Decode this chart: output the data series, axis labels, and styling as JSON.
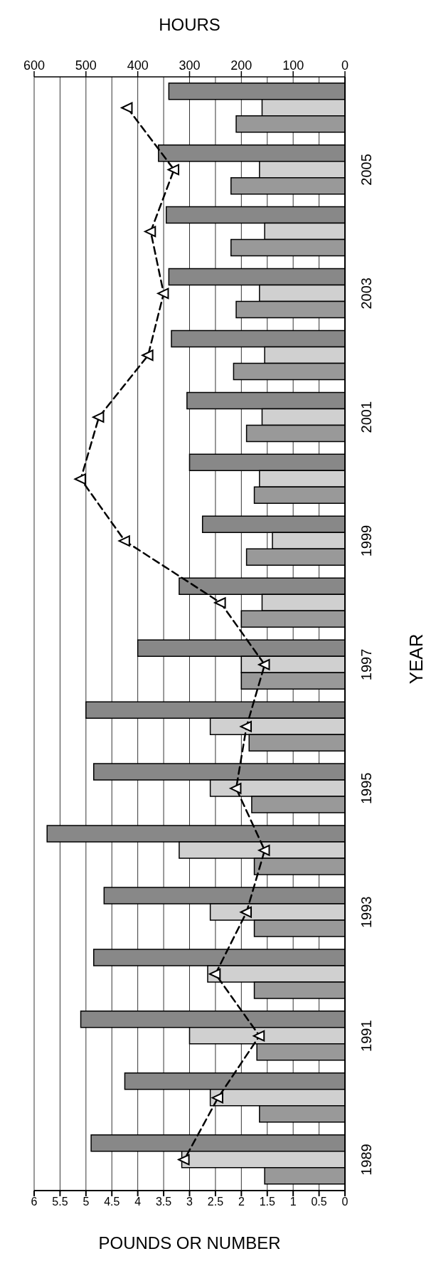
{
  "chart_data": {
    "type": "bar",
    "orientation": "horizontal",
    "categories": [
      null,
      "2005",
      null,
      "2003",
      null,
      "2001",
      null,
      "1999",
      null,
      "1997",
      null,
      "1995",
      null,
      "1993",
      null,
      "1991",
      null,
      "1989"
    ],
    "series": [
      {
        "color": "#888888",
        "values": [
          3.4,
          3.6,
          3.45,
          3.4,
          3.35,
          3.05,
          3.0,
          2.75,
          3.2,
          4.0,
          5.0,
          4.85,
          5.75,
          4.65,
          4.85,
          5.1,
          4.25,
          4.9
        ]
      },
      {
        "color": "#d0d0d0",
        "values": [
          1.6,
          1.65,
          1.55,
          1.65,
          1.55,
          1.6,
          1.65,
          1.4,
          1.6,
          2.0,
          2.6,
          2.6,
          3.2,
          2.6,
          2.65,
          3.0,
          2.6,
          3.15
        ]
      },
      {
        "color": "#999999",
        "values": [
          2.1,
          2.2,
          2.2,
          2.1,
          2.15,
          1.9,
          1.75,
          1.9,
          2.0,
          2.0,
          1.85,
          1.8,
          1.75,
          1.75,
          1.75,
          1.7,
          1.65,
          1.55
        ]
      },
      {
        "type": "line",
        "axis": "x2",
        "color": "#000000",
        "values": [
          420,
          330,
          375,
          350,
          380,
          475,
          510,
          425,
          240,
          155,
          190,
          210,
          155,
          190,
          250,
          165,
          245,
          310
        ]
      }
    ],
    "xlim": [
      6,
      0
    ],
    "xticks": [
      0,
      0.5,
      1,
      1.5,
      2,
      2.5,
      3,
      3.5,
      4,
      4.5,
      5,
      5.5,
      6
    ],
    "x2lim": [
      600,
      0
    ],
    "x2ticks": [
      0,
      100,
      200,
      300,
      400,
      500,
      600
    ],
    "xlabel": "POUNDS OR NUMBER",
    "x2label": "HOURS",
    "ylabel": "YEAR",
    "grid": "x",
    "marker": "triangle",
    "line_style": "dashed"
  }
}
